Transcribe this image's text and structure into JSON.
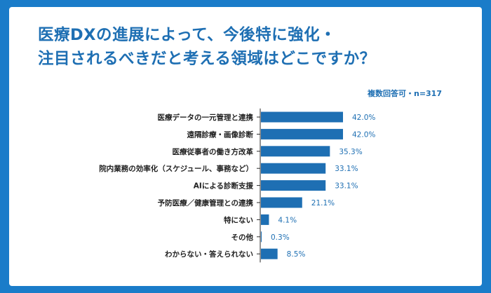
{
  "title_line1": "医療DXの進展によって、今後特に強化・",
  "title_line2": "注目されるべきだと考える領域はどこですか？",
  "note": "複数回答可・n=317",
  "colors": {
    "background": "#1a7cc9",
    "bar": "#1e6fb3",
    "text": "#1e6fb3"
  },
  "chart_data": {
    "type": "bar",
    "orientation": "horizontal",
    "title": "医療DXの進展によって、今後特に強化・注目されるべきだと考える領域はどこですか？",
    "categories": [
      "医療データの一元管理と連携",
      "遠隔診療・画像診断",
      "医療従事者の働き方改革",
      "院内業務の効率化（スケジュール、事務など）",
      "AIによる診断支援",
      "予防医療／健康管理との連携",
      "特にない",
      "その他",
      "わからない・答えられない"
    ],
    "values": [
      42.0,
      42.0,
      35.3,
      33.1,
      33.1,
      21.1,
      4.1,
      0.3,
      8.5
    ],
    "value_labels": [
      "42.0%",
      "42.0%",
      "35.3%",
      "33.1%",
      "33.1%",
      "21.1%",
      "4.1%",
      "0.3%",
      "8.5%"
    ],
    "unit": "%",
    "grid": false,
    "legend": "none"
  }
}
